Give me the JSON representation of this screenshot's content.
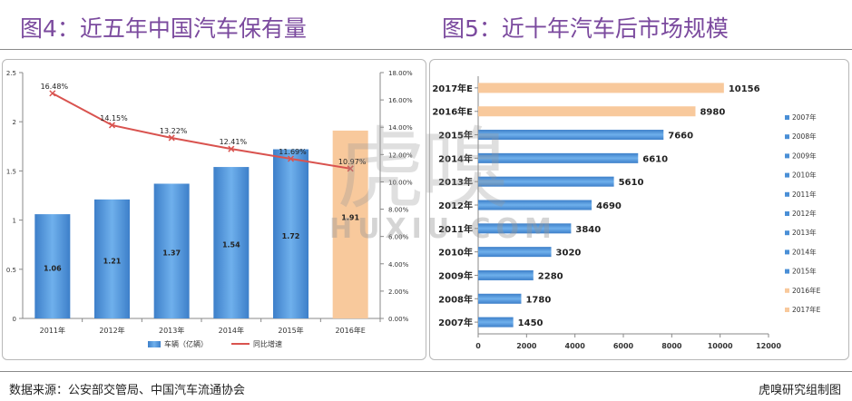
{
  "titles": {
    "chart1": "图4：近五年中国汽车保有量",
    "chart2": "图5：近十年汽车后市场规模"
  },
  "footer": {
    "source": "数据来源：公安部交管局、中国汽车流通协会",
    "credit": "虎嗅研究组制图"
  },
  "watermark": {
    "big": "虎嗅",
    "small": "HUXIU.COM"
  },
  "colors": {
    "title": "#7b4a9e",
    "bar_blue": "#4a8fd6",
    "bar_orange": "#f8c99c",
    "line_red": "#d9534f"
  },
  "chart_data": [
    {
      "type": "bar",
      "title": "图4：近五年中国汽车保有量",
      "categories": [
        "2011年",
        "2012年",
        "2013年",
        "2014年",
        "2015年",
        "2016年E"
      ],
      "series": [
        {
          "name": "车辆（亿辆）",
          "axis": "left",
          "values": [
            1.06,
            1.21,
            1.37,
            1.54,
            1.72,
            1.91
          ],
          "labels": [
            "1.06",
            "1.21",
            "1.37",
            "1.54",
            "1.72",
            "1.91"
          ]
        },
        {
          "name": "同比增速",
          "axis": "right",
          "type": "line",
          "values": [
            16.48,
            14.15,
            13.22,
            12.41,
            11.69,
            10.97
          ],
          "labels": [
            "16.48%",
            "14.15%",
            "13.22%",
            "12.41%",
            "11.69%",
            "10.97%"
          ]
        }
      ],
      "ylim": [
        0,
        2.5
      ],
      "yticks": [
        "0",
        "0.5",
        "1",
        "1.5",
        "2",
        "2.5"
      ],
      "y2lim": [
        0,
        18
      ],
      "y2ticks": [
        "0.00%",
        "2.00%",
        "4.00%",
        "6.00%",
        "8.00%",
        "10.00%",
        "12.00%",
        "14.00%",
        "16.00%",
        "18.00%"
      ],
      "legend": "bottom"
    },
    {
      "type": "bar",
      "orientation": "horizontal",
      "title": "图5：近十年汽车后市场规模",
      "categories": [
        "2007年",
        "2008年",
        "2009年",
        "2010年",
        "2011年",
        "2012年",
        "2013年",
        "2014年",
        "2015年",
        "2016年E",
        "2017年E"
      ],
      "values": [
        1450,
        1780,
        2280,
        3020,
        3840,
        4690,
        5610,
        6610,
        7660,
        8980,
        10156
      ],
      "labels": [
        "1450",
        "1780",
        "2280",
        "3020",
        "3840",
        "4690",
        "5610",
        "6610",
        "7660",
        "8980",
        "10156"
      ],
      "xlim": [
        0,
        12000
      ],
      "xticks": [
        "0",
        "2000",
        "4000",
        "6000",
        "8000",
        "10000",
        "12000"
      ],
      "legend": "right"
    }
  ]
}
